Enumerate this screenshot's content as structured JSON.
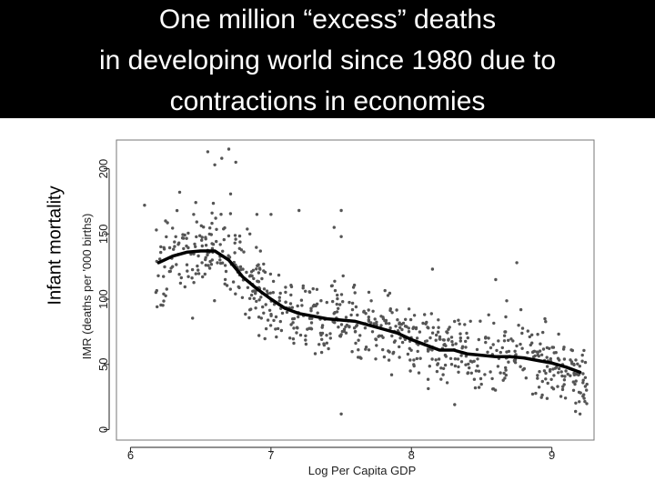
{
  "title_lines": [
    "One million “excess” deaths",
    "in developing world since 1980 due to",
    "contractions in economies"
  ],
  "outer_axis_label": "Infant mortality",
  "chart_data": {
    "type": "scatter",
    "title": "One million “excess” deaths in developing world since 1980 due to contractions in economies",
    "xlabel": "Log Per Capita GDP",
    "ylabel": "IMR (deaths per '000 births)",
    "xlim": [
      5.9,
      9.3
    ],
    "ylim": [
      -8,
      222
    ],
    "x_ticks": [
      6,
      7,
      8,
      9
    ],
    "y_ticks": [
      0,
      50,
      100,
      150,
      200
    ],
    "grid": false,
    "colors": {
      "points": "#555555",
      "curve": "#000000",
      "title_band": "#000000"
    },
    "series": [
      {
        "name": "",
        "kind": "points",
        "generated_points": 760,
        "x": [
          6.1,
          6.25,
          6.35,
          6.45,
          6.55,
          6.6,
          6.65,
          6.7,
          6.75,
          6.85,
          6.9,
          7.0,
          7.2,
          7.3,
          7.45,
          7.5,
          7.5,
          7.5,
          7.6,
          7.8,
          8.15,
          8.25,
          8.35,
          8.55,
          8.6,
          8.75,
          8.95,
          9.1,
          9.2
        ],
        "y": [
          172,
          160,
          182,
          165,
          213,
          203,
          208,
          215,
          205,
          150,
          165,
          165,
          168,
          108,
          155,
          148,
          168,
          12,
          75,
          85,
          123,
          75,
          68,
          88,
          115,
          128,
          85,
          45,
          12
        ]
      },
      {
        "name": "",
        "kind": "smoothed-curve",
        "x": [
          6.2,
          6.3,
          6.4,
          6.5,
          6.6,
          6.7,
          6.8,
          6.9,
          7.0,
          7.1,
          7.2,
          7.3,
          7.4,
          7.5,
          7.6,
          7.7,
          7.8,
          7.9,
          8.0,
          8.1,
          8.2,
          8.3,
          8.4,
          8.5,
          8.6,
          8.7,
          8.8,
          8.9,
          9.0,
          9.1,
          9.2
        ],
        "y": [
          128,
          133,
          136,
          137,
          137,
          130,
          117,
          108,
          100,
          93,
          89,
          87,
          85,
          84,
          83,
          80,
          77,
          74,
          69,
          65,
          61,
          61,
          58,
          57,
          56,
          56,
          55,
          53,
          51,
          48,
          44
        ]
      }
    ]
  }
}
